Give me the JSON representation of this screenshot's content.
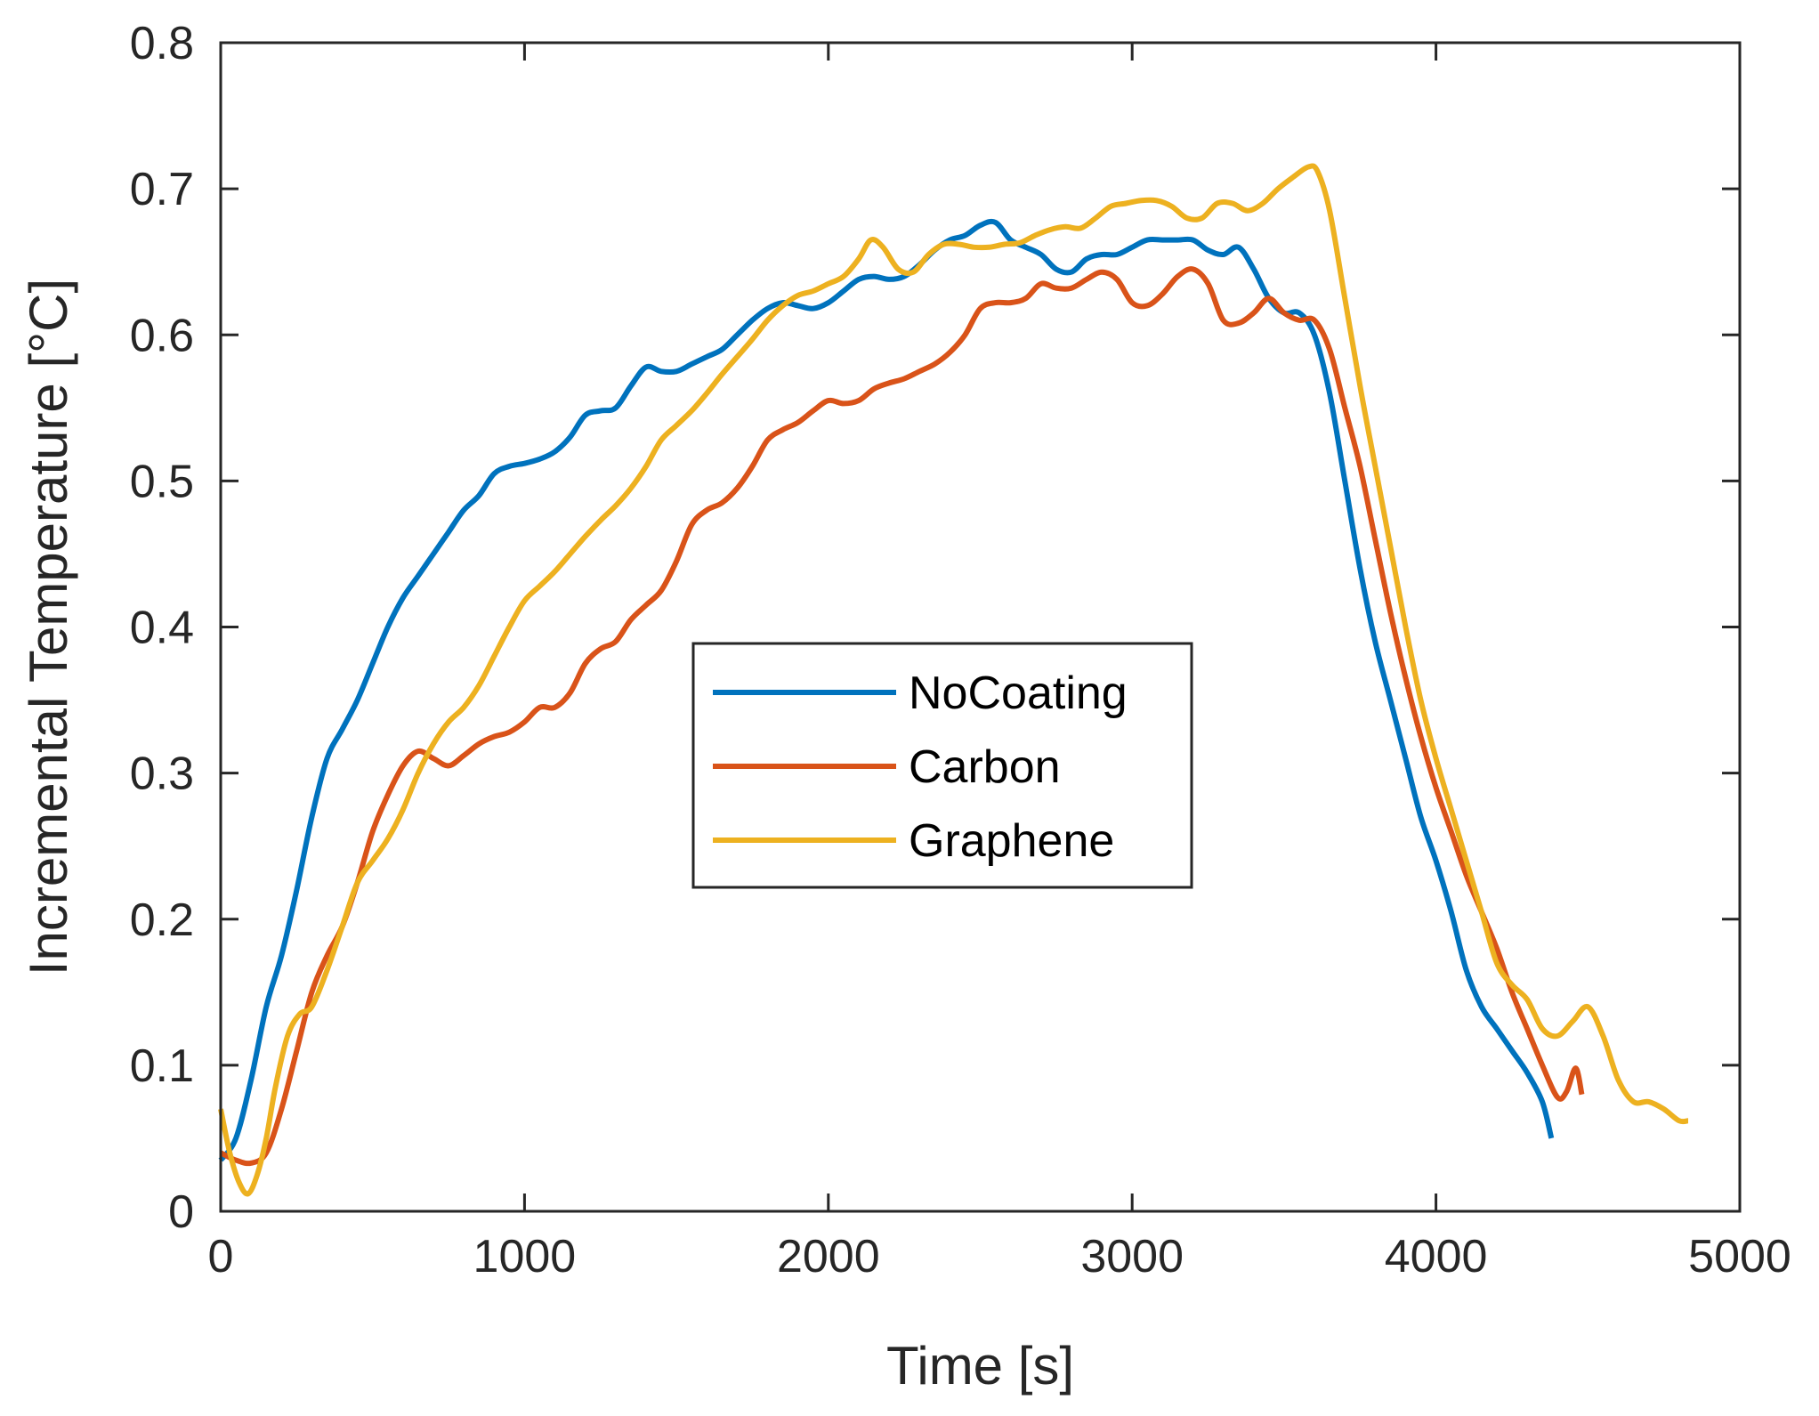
{
  "chart_data": {
    "type": "line",
    "title": "",
    "xlabel": "Time [s]",
    "ylabel": "Incremental Temperature [°C]",
    "xlim": [
      0,
      5000
    ],
    "ylim": [
      0,
      0.8
    ],
    "xticks": [
      0,
      1000,
      2000,
      3000,
      4000,
      5000
    ],
    "xtick_labels": [
      "0",
      "1000",
      "2000",
      "3000",
      "4000",
      "5000"
    ],
    "yticks": [
      0,
      0.1,
      0.2,
      0.3,
      0.4,
      0.5,
      0.6,
      0.7,
      0.8
    ],
    "ytick_labels": [
      "0",
      "0.1",
      "0.2",
      "0.3",
      "0.4",
      "0.5",
      "0.6",
      "0.7",
      "0.8"
    ],
    "grid": false,
    "legend_position": "center",
    "series": [
      {
        "name": "NoCoating",
        "color": "#0072BD",
        "points": [
          [
            0,
            0.035
          ],
          [
            50,
            0.05
          ],
          [
            100,
            0.09
          ],
          [
            150,
            0.14
          ],
          [
            200,
            0.175
          ],
          [
            250,
            0.22
          ],
          [
            300,
            0.27
          ],
          [
            350,
            0.31
          ],
          [
            400,
            0.33
          ],
          [
            450,
            0.35
          ],
          [
            500,
            0.375
          ],
          [
            550,
            0.4
          ],
          [
            600,
            0.42
          ],
          [
            650,
            0.435
          ],
          [
            700,
            0.45
          ],
          [
            750,
            0.465
          ],
          [
            800,
            0.48
          ],
          [
            850,
            0.49
          ],
          [
            900,
            0.505
          ],
          [
            950,
            0.51
          ],
          [
            1000,
            0.512
          ],
          [
            1050,
            0.515
          ],
          [
            1100,
            0.52
          ],
          [
            1150,
            0.53
          ],
          [
            1200,
            0.545
          ],
          [
            1250,
            0.548
          ],
          [
            1300,
            0.55
          ],
          [
            1350,
            0.565
          ],
          [
            1400,
            0.578
          ],
          [
            1450,
            0.575
          ],
          [
            1500,
            0.575
          ],
          [
            1550,
            0.58
          ],
          [
            1600,
            0.585
          ],
          [
            1650,
            0.59
          ],
          [
            1700,
            0.6
          ],
          [
            1750,
            0.61
          ],
          [
            1800,
            0.618
          ],
          [
            1850,
            0.622
          ],
          [
            1900,
            0.62
          ],
          [
            1950,
            0.618
          ],
          [
            2000,
            0.622
          ],
          [
            2050,
            0.63
          ],
          [
            2100,
            0.638
          ],
          [
            2150,
            0.64
          ],
          [
            2200,
            0.638
          ],
          [
            2250,
            0.64
          ],
          [
            2300,
            0.648
          ],
          [
            2350,
            0.658
          ],
          [
            2400,
            0.665
          ],
          [
            2450,
            0.668
          ],
          [
            2500,
            0.675
          ],
          [
            2550,
            0.677
          ],
          [
            2600,
            0.665
          ],
          [
            2650,
            0.66
          ],
          [
            2700,
            0.655
          ],
          [
            2750,
            0.645
          ],
          [
            2800,
            0.643
          ],
          [
            2850,
            0.652
          ],
          [
            2900,
            0.655
          ],
          [
            2950,
            0.655
          ],
          [
            3000,
            0.66
          ],
          [
            3050,
            0.665
          ],
          [
            3100,
            0.665
          ],
          [
            3150,
            0.665
          ],
          [
            3200,
            0.665
          ],
          [
            3250,
            0.658
          ],
          [
            3300,
            0.655
          ],
          [
            3350,
            0.66
          ],
          [
            3400,
            0.645
          ],
          [
            3450,
            0.625
          ],
          [
            3500,
            0.615
          ],
          [
            3550,
            0.615
          ],
          [
            3600,
            0.6
          ],
          [
            3650,
            0.56
          ],
          [
            3700,
            0.5
          ],
          [
            3750,
            0.44
          ],
          [
            3800,
            0.39
          ],
          [
            3850,
            0.35
          ],
          [
            3900,
            0.31
          ],
          [
            3950,
            0.27
          ],
          [
            4000,
            0.24
          ],
          [
            4050,
            0.205
          ],
          [
            4100,
            0.165
          ],
          [
            4150,
            0.14
          ],
          [
            4200,
            0.125
          ],
          [
            4250,
            0.11
          ],
          [
            4300,
            0.095
          ],
          [
            4350,
            0.075
          ],
          [
            4380,
            0.05
          ]
        ]
      },
      {
        "name": "Carbon",
        "color": "#D95319",
        "points": [
          [
            0,
            0.04
          ],
          [
            50,
            0.035
          ],
          [
            100,
            0.033
          ],
          [
            150,
            0.04
          ],
          [
            200,
            0.07
          ],
          [
            250,
            0.11
          ],
          [
            300,
            0.15
          ],
          [
            350,
            0.175
          ],
          [
            400,
            0.195
          ],
          [
            450,
            0.225
          ],
          [
            500,
            0.26
          ],
          [
            550,
            0.285
          ],
          [
            600,
            0.305
          ],
          [
            650,
            0.315
          ],
          [
            700,
            0.31
          ],
          [
            750,
            0.305
          ],
          [
            800,
            0.312
          ],
          [
            850,
            0.32
          ],
          [
            900,
            0.325
          ],
          [
            950,
            0.328
          ],
          [
            1000,
            0.335
          ],
          [
            1050,
            0.345
          ],
          [
            1100,
            0.345
          ],
          [
            1150,
            0.355
          ],
          [
            1200,
            0.375
          ],
          [
            1250,
            0.385
          ],
          [
            1300,
            0.39
          ],
          [
            1350,
            0.405
          ],
          [
            1400,
            0.415
          ],
          [
            1450,
            0.425
          ],
          [
            1500,
            0.445
          ],
          [
            1550,
            0.47
          ],
          [
            1600,
            0.48
          ],
          [
            1650,
            0.485
          ],
          [
            1700,
            0.495
          ],
          [
            1750,
            0.51
          ],
          [
            1800,
            0.528
          ],
          [
            1850,
            0.535
          ],
          [
            1900,
            0.54
          ],
          [
            1950,
            0.548
          ],
          [
            2000,
            0.555
          ],
          [
            2050,
            0.553
          ],
          [
            2100,
            0.555
          ],
          [
            2150,
            0.563
          ],
          [
            2200,
            0.567
          ],
          [
            2250,
            0.57
          ],
          [
            2300,
            0.575
          ],
          [
            2350,
            0.58
          ],
          [
            2400,
            0.588
          ],
          [
            2450,
            0.6
          ],
          [
            2500,
            0.618
          ],
          [
            2550,
            0.622
          ],
          [
            2600,
            0.622
          ],
          [
            2650,
            0.625
          ],
          [
            2700,
            0.635
          ],
          [
            2750,
            0.632
          ],
          [
            2800,
            0.632
          ],
          [
            2850,
            0.638
          ],
          [
            2900,
            0.643
          ],
          [
            2950,
            0.638
          ],
          [
            3000,
            0.622
          ],
          [
            3050,
            0.62
          ],
          [
            3100,
            0.628
          ],
          [
            3150,
            0.64
          ],
          [
            3200,
            0.645
          ],
          [
            3250,
            0.635
          ],
          [
            3300,
            0.61
          ],
          [
            3350,
            0.608
          ],
          [
            3400,
            0.615
          ],
          [
            3450,
            0.625
          ],
          [
            3500,
            0.615
          ],
          [
            3550,
            0.61
          ],
          [
            3600,
            0.61
          ],
          [
            3650,
            0.59
          ],
          [
            3700,
            0.55
          ],
          [
            3750,
            0.51
          ],
          [
            3800,
            0.46
          ],
          [
            3850,
            0.41
          ],
          [
            3900,
            0.365
          ],
          [
            3950,
            0.325
          ],
          [
            4000,
            0.29
          ],
          [
            4050,
            0.26
          ],
          [
            4100,
            0.23
          ],
          [
            4150,
            0.205
          ],
          [
            4200,
            0.18
          ],
          [
            4250,
            0.15
          ],
          [
            4300,
            0.125
          ],
          [
            4350,
            0.1
          ],
          [
            4400,
            0.078
          ],
          [
            4430,
            0.082
          ],
          [
            4460,
            0.098
          ],
          [
            4480,
            0.08
          ]
        ]
      },
      {
        "name": "Graphene",
        "color": "#EDB120",
        "points": [
          [
            0,
            0.07
          ],
          [
            30,
            0.04
          ],
          [
            60,
            0.02
          ],
          [
            90,
            0.012
          ],
          [
            120,
            0.025
          ],
          [
            150,
            0.05
          ],
          [
            180,
            0.085
          ],
          [
            220,
            0.12
          ],
          [
            260,
            0.135
          ],
          [
            300,
            0.14
          ],
          [
            350,
            0.165
          ],
          [
            400,
            0.195
          ],
          [
            450,
            0.225
          ],
          [
            500,
            0.24
          ],
          [
            550,
            0.255
          ],
          [
            600,
            0.275
          ],
          [
            650,
            0.3
          ],
          [
            700,
            0.32
          ],
          [
            750,
            0.335
          ],
          [
            800,
            0.345
          ],
          [
            850,
            0.36
          ],
          [
            900,
            0.38
          ],
          [
            950,
            0.4
          ],
          [
            1000,
            0.418
          ],
          [
            1050,
            0.428
          ],
          [
            1100,
            0.438
          ],
          [
            1150,
            0.45
          ],
          [
            1200,
            0.462
          ],
          [
            1250,
            0.473
          ],
          [
            1300,
            0.483
          ],
          [
            1350,
            0.495
          ],
          [
            1400,
            0.51
          ],
          [
            1450,
            0.528
          ],
          [
            1500,
            0.538
          ],
          [
            1550,
            0.548
          ],
          [
            1600,
            0.56
          ],
          [
            1650,
            0.573
          ],
          [
            1700,
            0.585
          ],
          [
            1750,
            0.597
          ],
          [
            1800,
            0.61
          ],
          [
            1850,
            0.62
          ],
          [
            1900,
            0.627
          ],
          [
            1950,
            0.63
          ],
          [
            2000,
            0.635
          ],
          [
            2050,
            0.64
          ],
          [
            2100,
            0.652
          ],
          [
            2140,
            0.665
          ],
          [
            2180,
            0.66
          ],
          [
            2230,
            0.645
          ],
          [
            2280,
            0.643
          ],
          [
            2330,
            0.655
          ],
          [
            2380,
            0.662
          ],
          [
            2430,
            0.662
          ],
          [
            2480,
            0.66
          ],
          [
            2530,
            0.66
          ],
          [
            2580,
            0.662
          ],
          [
            2630,
            0.663
          ],
          [
            2680,
            0.668
          ],
          [
            2730,
            0.672
          ],
          [
            2780,
            0.674
          ],
          [
            2830,
            0.673
          ],
          [
            2880,
            0.68
          ],
          [
            2930,
            0.688
          ],
          [
            2980,
            0.69
          ],
          [
            3030,
            0.692
          ],
          [
            3080,
            0.692
          ],
          [
            3130,
            0.688
          ],
          [
            3180,
            0.68
          ],
          [
            3230,
            0.68
          ],
          [
            3280,
            0.69
          ],
          [
            3330,
            0.69
          ],
          [
            3380,
            0.685
          ],
          [
            3430,
            0.69
          ],
          [
            3480,
            0.7
          ],
          [
            3530,
            0.708
          ],
          [
            3580,
            0.715
          ],
          [
            3610,
            0.712
          ],
          [
            3650,
            0.685
          ],
          [
            3700,
            0.625
          ],
          [
            3750,
            0.565
          ],
          [
            3800,
            0.51
          ],
          [
            3850,
            0.455
          ],
          [
            3900,
            0.4
          ],
          [
            3950,
            0.35
          ],
          [
            4000,
            0.31
          ],
          [
            4050,
            0.275
          ],
          [
            4100,
            0.24
          ],
          [
            4150,
            0.205
          ],
          [
            4200,
            0.17
          ],
          [
            4250,
            0.155
          ],
          [
            4300,
            0.145
          ],
          [
            4350,
            0.125
          ],
          [
            4400,
            0.12
          ],
          [
            4450,
            0.13
          ],
          [
            4500,
            0.14
          ],
          [
            4550,
            0.12
          ],
          [
            4600,
            0.09
          ],
          [
            4650,
            0.075
          ],
          [
            4700,
            0.075
          ],
          [
            4750,
            0.07
          ],
          [
            4800,
            0.062
          ],
          [
            4830,
            0.062
          ]
        ]
      }
    ]
  }
}
